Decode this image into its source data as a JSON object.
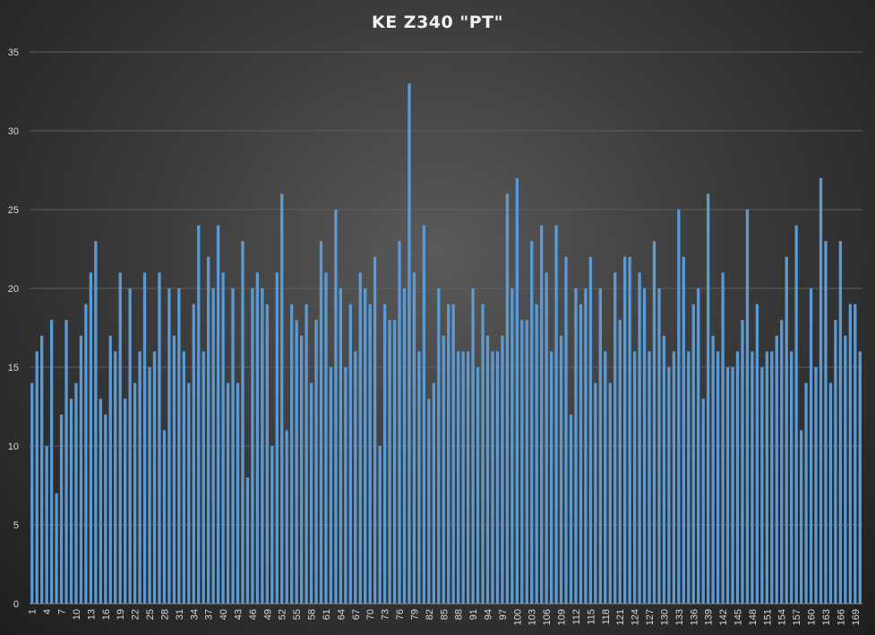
{
  "chart_data": {
    "type": "bar",
    "title": "KE Z340 \"PT\"",
    "xlabel": "",
    "ylabel": "",
    "ylim": [
      0,
      35
    ],
    "yticks": [
      0,
      5,
      10,
      15,
      20,
      25,
      30,
      35
    ],
    "grid": true,
    "bar_color": "#5b9bd5",
    "x": [
      1,
      2,
      3,
      4,
      5,
      6,
      7,
      8,
      9,
      10,
      11,
      12,
      13,
      14,
      15,
      16,
      17,
      18,
      19,
      20,
      21,
      22,
      23,
      24,
      25,
      26,
      27,
      28,
      29,
      30,
      31,
      32,
      33,
      34,
      35,
      36,
      37,
      38,
      39,
      40,
      41,
      42,
      43,
      44,
      45,
      46,
      47,
      48,
      49,
      50,
      51,
      52,
      53,
      54,
      55,
      56,
      57,
      58,
      59,
      60,
      61,
      62,
      63,
      64,
      65,
      66,
      67,
      68,
      69,
      70,
      71,
      72,
      73,
      74,
      75,
      76,
      77,
      78,
      79,
      80,
      81,
      82,
      83,
      84,
      85,
      86,
      87,
      88,
      89,
      90,
      91,
      92,
      93,
      94,
      95,
      96,
      97,
      98,
      99,
      100,
      101,
      102,
      103,
      104,
      105,
      106,
      107,
      108,
      109,
      110,
      111,
      112,
      113,
      114,
      115,
      116,
      117,
      118,
      119,
      120,
      121,
      122,
      123,
      124,
      125,
      126,
      127,
      128,
      129,
      130,
      131,
      132,
      133,
      134,
      135,
      136,
      137,
      138,
      139,
      140,
      141,
      142,
      143,
      144,
      145,
      146,
      147,
      148,
      149,
      150,
      151,
      152,
      153,
      154,
      155,
      156,
      157,
      158,
      159,
      160,
      161,
      162,
      163,
      164,
      165,
      166,
      167,
      168,
      169,
      170
    ],
    "values": [
      14,
      16,
      17,
      10,
      18,
      7,
      12,
      18,
      13,
      14,
      17,
      19,
      21,
      23,
      13,
      12,
      17,
      16,
      21,
      13,
      20,
      14,
      16,
      21,
      15,
      16,
      21,
      11,
      20,
      17,
      20,
      16,
      14,
      19,
      24,
      16,
      22,
      20,
      24,
      21,
      14,
      20,
      14,
      23,
      8,
      20,
      21,
      20,
      19,
      10,
      21,
      26,
      11,
      19,
      18,
      17,
      19,
      14,
      18,
      23,
      21,
      15,
      25,
      20,
      15,
      19,
      16,
      21,
      20,
      19,
      22,
      10,
      19,
      18,
      18,
      23,
      20,
      33,
      21,
      16,
      24,
      13,
      14,
      20,
      17,
      19,
      19,
      16,
      16,
      16,
      20,
      15,
      19,
      17,
      16,
      16,
      17,
      26,
      20,
      27,
      18,
      18,
      23,
      19,
      24,
      21,
      16,
      24,
      17,
      22,
      12,
      20,
      19,
      20,
      22,
      14,
      20,
      16,
      14,
      21,
      18,
      22,
      22,
      16,
      21,
      20,
      16,
      23,
      20,
      17,
      15,
      16,
      25,
      22,
      16,
      19,
      20,
      13,
      26,
      17,
      16,
      21,
      15,
      15,
      16,
      18,
      25,
      16,
      19,
      15,
      16,
      16,
      17,
      18,
      22,
      16,
      24,
      11,
      14,
      20,
      15,
      27,
      23,
      14,
      18,
      23,
      17,
      19,
      19,
      16
    ],
    "xtick_labels": [
      "1",
      "4",
      "7",
      "10",
      "13",
      "16",
      "19",
      "22",
      "25",
      "28",
      "31",
      "34",
      "37",
      "40",
      "43",
      "46",
      "49",
      "52",
      "55",
      "58",
      "61",
      "64",
      "67",
      "70",
      "73",
      "76",
      "79",
      "82",
      "85",
      "88",
      "91",
      "94",
      "97",
      "100",
      "103",
      "106",
      "109",
      "112",
      "115",
      "118",
      "121",
      "124",
      "127",
      "130",
      "133",
      "136",
      "139",
      "142",
      "145",
      "148",
      "151",
      "154",
      "157",
      "160",
      "163",
      "166",
      "169"
    ]
  }
}
